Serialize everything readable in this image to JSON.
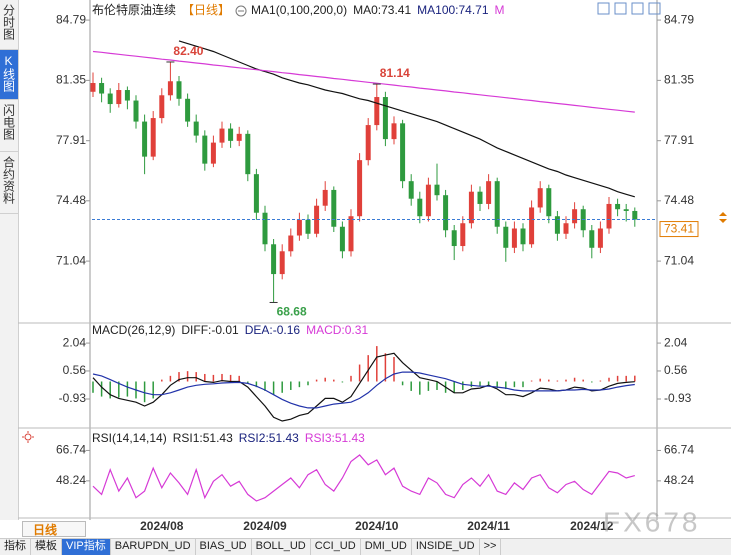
{
  "sidebar_tabs": [
    "分时图",
    "K线图",
    "闪电图",
    "合约资料"
  ],
  "period_button": "日线",
  "tabs": [
    "指标",
    "模板",
    "VIP指标",
    "BARUPDN_UD",
    "BIAS_UD",
    "BOLL_UD",
    "CCI_UD",
    "DMI_UD",
    "INSIDE_UD",
    ">>"
  ],
  "watermark": "FX678",
  "chart_data": [
    {
      "type": "candlestick",
      "title": "布伦特原油连续",
      "period": "【日线】",
      "period_color": "#e07b00",
      "legend": [
        {
          "text": "MA1(0,100,200,0)",
          "color": "#222222"
        },
        {
          "text": "MA0:73.41",
          "color": "#222222"
        },
        {
          "text": "MA100:74.71",
          "color": "#1a237e"
        },
        {
          "text": "M",
          "color": "#d63ad6"
        }
      ],
      "categories": [
        null,
        null,
        null,
        null,
        null,
        null,
        null,
        null,
        "2024/08",
        null,
        null,
        null,
        null,
        null,
        null,
        null,
        null,
        null,
        null,
        null,
        "2024/09",
        null,
        null,
        null,
        null,
        null,
        null,
        null,
        null,
        null,
        null,
        null,
        null,
        "2024/10",
        null,
        null,
        null,
        null,
        null,
        null,
        null,
        null,
        null,
        null,
        null,
        null,
        "2024/11",
        null,
        null,
        null,
        null,
        null,
        null,
        null,
        null,
        null,
        null,
        null,
        "2024/12",
        null,
        null,
        null,
        null,
        null
      ],
      "open": [
        80.7,
        81.2,
        80.6,
        80.0,
        80.8,
        80.2,
        79.0,
        77.0,
        79.2,
        80.5,
        81.3,
        80.3,
        79.0,
        78.2,
        76.6,
        77.8,
        78.6,
        77.9,
        78.3,
        76.0,
        73.8,
        72.0,
        70.3,
        71.6,
        72.5,
        73.4,
        72.6,
        74.2,
        75.1,
        73.0,
        71.6,
        73.6,
        76.8,
        78.8,
        80.4,
        78.0,
        78.9,
        75.6,
        74.6,
        73.6,
        75.4,
        74.8,
        72.8,
        71.9,
        73.2,
        75.0,
        74.3,
        75.6,
        73.0,
        71.8,
        72.9,
        72.0,
        74.1,
        75.2,
        73.6,
        72.6,
        73.2,
        74.0,
        72.8,
        71.8,
        72.9,
        74.3,
        74.0,
        73.9
      ],
      "high": [
        81.8,
        81.5,
        80.9,
        81.2,
        81.0,
        80.5,
        79.4,
        79.6,
        80.9,
        82.4,
        81.6,
        80.6,
        79.4,
        78.5,
        78.2,
        79.0,
        78.9,
        78.7,
        78.5,
        76.3,
        74.2,
        72.3,
        72.0,
        72.9,
        73.8,
        73.7,
        74.6,
        75.6,
        75.3,
        73.3,
        74.0,
        77.2,
        79.2,
        81.14,
        80.7,
        79.3,
        79.1,
        76.0,
        75.0,
        75.8,
        76.6,
        75.1,
        73.1,
        73.6,
        75.4,
        75.3,
        76.0,
        75.8,
        73.3,
        73.3,
        73.2,
        74.5,
        75.6,
        75.4,
        73.9,
        73.6,
        74.4,
        74.2,
        73.1,
        73.3,
        74.7,
        74.6,
        74.3,
        74.1
      ],
      "low": [
        80.4,
        80.1,
        79.5,
        79.8,
        79.7,
        78.6,
        76.0,
        76.8,
        78.9,
        80.2,
        79.9,
        78.7,
        77.8,
        76.2,
        76.4,
        77.5,
        77.5,
        77.6,
        75.6,
        73.4,
        71.6,
        68.68,
        70.0,
        71.3,
        72.2,
        72.3,
        72.4,
        73.9,
        72.7,
        71.2,
        71.3,
        73.3,
        76.5,
        78.5,
        77.6,
        77.7,
        75.2,
        74.2,
        73.2,
        73.3,
        74.5,
        72.4,
        71.1,
        71.6,
        72.9,
        73.9,
        74.0,
        72.6,
        71.0,
        71.5,
        71.6,
        71.8,
        73.8,
        73.2,
        72.2,
        72.3,
        72.9,
        72.4,
        71.2,
        71.5,
        72.6,
        73.6,
        73.3,
        73.0
      ],
      "close": [
        81.2,
        80.6,
        80.0,
        80.8,
        80.2,
        79.0,
        77.0,
        79.2,
        80.5,
        81.3,
        80.3,
        79.0,
        78.2,
        76.6,
        77.8,
        78.6,
        77.9,
        78.3,
        76.0,
        73.8,
        72.0,
        70.3,
        71.6,
        72.5,
        73.4,
        72.6,
        74.2,
        75.1,
        73.0,
        71.6,
        73.6,
        76.8,
        78.8,
        80.4,
        78.0,
        78.9,
        75.6,
        74.6,
        73.6,
        75.4,
        74.8,
        72.8,
        71.9,
        73.2,
        75.0,
        74.3,
        75.6,
        73.0,
        71.8,
        72.9,
        72.0,
        74.1,
        75.2,
        73.6,
        72.6,
        73.2,
        74.0,
        72.8,
        71.8,
        72.9,
        74.3,
        74.0,
        73.9,
        73.41
      ],
      "up_color": "#e0403a",
      "down_color": "#2e9a3e",
      "lines": [
        {
          "color": "#111111",
          "values": [
            null,
            null,
            null,
            null,
            null,
            null,
            null,
            null,
            null,
            null,
            83.6,
            83.45,
            83.3,
            83.15,
            83.0,
            82.8,
            82.6,
            82.4,
            82.2,
            82.0,
            81.85,
            81.7,
            81.5,
            81.35,
            81.2,
            81.1,
            80.95,
            80.8,
            80.7,
            80.6,
            80.45,
            80.3,
            80.2,
            80.05,
            79.9,
            79.75,
            79.6,
            79.45,
            79.3,
            79.15,
            79.0,
            78.8,
            78.6,
            78.4,
            78.2,
            78.0,
            77.75,
            77.5,
            77.3,
            77.1,
            76.9,
            76.7,
            76.5,
            76.3,
            76.15,
            75.95,
            75.8,
            75.65,
            75.5,
            75.35,
            75.2,
            75.0,
            74.85,
            74.71
          ]
        },
        {
          "color": "#d63ad6",
          "values": [
            83.0,
            82.95,
            82.89,
            82.84,
            82.78,
            82.73,
            82.67,
            82.62,
            82.56,
            82.51,
            82.45,
            82.4,
            82.34,
            82.29,
            82.23,
            82.18,
            82.12,
            82.07,
            82.01,
            81.96,
            81.9,
            81.85,
            81.79,
            81.74,
            81.68,
            81.63,
            81.57,
            81.52,
            81.46,
            81.41,
            81.35,
            81.3,
            81.24,
            81.19,
            81.13,
            81.08,
            81.02,
            80.97,
            80.91,
            80.86,
            80.8,
            80.75,
            80.69,
            80.64,
            80.58,
            80.53,
            80.47,
            80.42,
            80.36,
            80.31,
            80.25,
            80.2,
            80.14,
            80.09,
            80.03,
            79.98,
            79.92,
            79.87,
            79.81,
            79.76,
            79.7,
            79.65,
            79.59,
            79.54
          ]
        }
      ],
      "annotations": [
        {
          "value": 82.4,
          "label": "82.40",
          "color": "#d9443a"
        },
        {
          "value": 81.14,
          "label": "81.14",
          "color": "#d9443a"
        },
        {
          "value": 68.68,
          "label": "68.68",
          "color": "#3aa04a"
        }
      ],
      "last_price": {
        "value": 73.41,
        "label": "73.41",
        "color": "#e07b00",
        "line_color": "#3a7bd5"
      },
      "ylim": [
        67.68,
        85.08
      ],
      "yticks": [
        71.04,
        74.48,
        77.91,
        81.35,
        84.79
      ]
    },
    {
      "type": "macd",
      "title": "MACD(26,12,9)",
      "legend": [
        {
          "text": "DIFF:-0.01",
          "color": "#222222"
        },
        {
          "text": "DEA:-0.16",
          "color": "#1a237e"
        },
        {
          "text": "MACD:0.31",
          "color": "#d63ad6"
        }
      ],
      "histogram": [
        -0.6,
        -0.8,
        -0.9,
        -0.85,
        -0.8,
        -0.9,
        -1.1,
        -0.9,
        0.1,
        0.3,
        0.5,
        0.55,
        0.5,
        0.4,
        0.35,
        0.4,
        0.35,
        0.3,
        -0.1,
        -0.3,
        -0.5,
        -0.7,
        -0.6,
        -0.45,
        -0.3,
        -0.2,
        0.1,
        0.2,
        0.1,
        -0.05,
        0.3,
        0.9,
        1.4,
        1.88,
        1.5,
        1.3,
        -0.2,
        -0.5,
        -0.7,
        -0.5,
        -0.45,
        -0.6,
        -0.6,
        -0.45,
        -0.3,
        -0.25,
        -0.2,
        -0.35,
        -0.4,
        -0.3,
        -0.3,
        0.05,
        0.15,
        0.1,
        0.05,
        0.1,
        0.2,
        0.1,
        -0.05,
        0.05,
        0.2,
        0.3,
        0.3,
        0.31
      ],
      "up_color": "#e0403a",
      "down_color": "#2e9a3e",
      "lines": [
        {
          "color": "#111111",
          "values": [
            0.2,
            -0.3,
            -0.7,
            -0.9,
            -1.0,
            -1.1,
            -1.3,
            -1.1,
            -0.7,
            -0.2,
            0.1,
            0.2,
            0.2,
            0.0,
            -0.05,
            0.05,
            0.0,
            0.0,
            -0.3,
            -0.8,
            -1.3,
            -1.9,
            -2.1,
            -2.0,
            -1.8,
            -1.7,
            -1.3,
            -0.9,
            -0.9,
            -1.1,
            -0.8,
            -0.1,
            0.6,
            1.3,
            1.4,
            1.5,
            1.0,
            0.6,
            0.2,
            0.1,
            0.0,
            -0.3,
            -0.6,
            -0.6,
            -0.4,
            -0.35,
            -0.2,
            -0.4,
            -0.7,
            -0.7,
            -0.8,
            -0.6,
            -0.35,
            -0.4,
            -0.5,
            -0.45,
            -0.3,
            -0.35,
            -0.5,
            -0.45,
            -0.25,
            -0.1,
            -0.05,
            -0.01
          ]
        },
        {
          "color": "#2233aa",
          "values": [
            0.4,
            0.3,
            0.1,
            -0.1,
            -0.3,
            -0.45,
            -0.6,
            -0.7,
            -0.7,
            -0.6,
            -0.45,
            -0.3,
            -0.2,
            -0.15,
            -0.12,
            -0.08,
            -0.06,
            -0.05,
            -0.1,
            -0.25,
            -0.45,
            -0.7,
            -0.95,
            -1.15,
            -1.3,
            -1.4,
            -1.4,
            -1.3,
            -1.2,
            -1.15,
            -1.1,
            -0.9,
            -0.6,
            -0.2,
            0.15,
            0.4,
            0.5,
            0.5,
            0.45,
            0.35,
            0.25,
            0.15,
            0.0,
            -0.15,
            -0.2,
            -0.25,
            -0.25,
            -0.3,
            -0.35,
            -0.45,
            -0.5,
            -0.5,
            -0.5,
            -0.5,
            -0.5,
            -0.45,
            -0.45,
            -0.42,
            -0.45,
            -0.45,
            -0.4,
            -0.3,
            -0.22,
            -0.16
          ]
        }
      ],
      "ylim": [
        -2.31,
        2.31
      ],
      "yticks": [
        -0.93,
        0.56,
        2.04
      ]
    },
    {
      "type": "line",
      "title": "RSI(14,14,14)",
      "legend": [
        {
          "text": "RSI1:51.43",
          "color": "#222222"
        },
        {
          "text": "RSI2:51.43",
          "color": "#1a237e"
        },
        {
          "text": "RSI3:51.43",
          "color": "#d63ad6"
        }
      ],
      "lines": [
        {
          "color": "#d63ad6",
          "values": [
            45,
            40,
            55,
            42,
            50,
            38,
            42,
            56,
            44,
            53,
            47,
            40,
            55,
            38,
            48,
            52,
            45,
            48,
            40,
            36,
            38,
            42,
            46,
            50,
            44,
            52,
            55,
            46,
            42,
            50,
            60,
            64,
            58,
            61,
            52,
            56,
            45,
            42,
            40,
            50,
            47,
            40,
            38,
            46,
            50,
            45,
            52,
            42,
            40,
            47,
            43,
            50,
            52,
            44,
            41,
            46,
            48,
            43,
            40,
            47,
            54,
            53,
            50,
            51.43
          ]
        }
      ],
      "ylim": [
        26.86,
        73.1
      ],
      "yticks": [
        48.24,
        66.74
      ]
    }
  ]
}
